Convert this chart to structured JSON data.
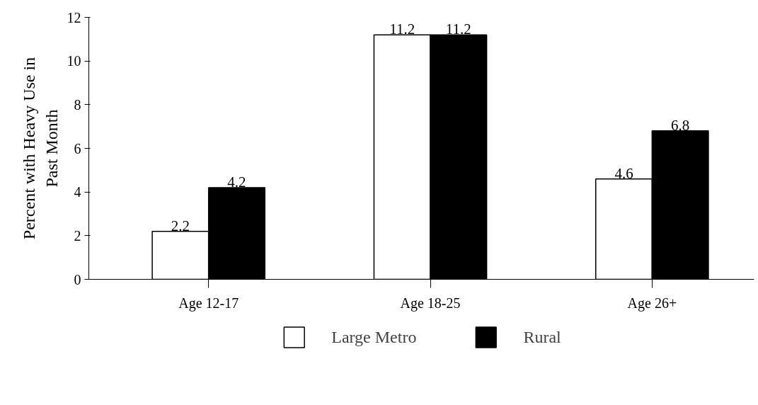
{
  "chart_data": {
    "type": "bar",
    "ylabel": "Percent with Heavy Use in Past Month",
    "categories": [
      "Age 12-17",
      "Age 18-25",
      "Age 26+"
    ],
    "series": [
      {
        "name": "Large Metro",
        "color": "#ffffff",
        "values": [
          2.2,
          11.2,
          4.6
        ]
      },
      {
        "name": "Rural",
        "color": "#000000",
        "values": [
          4.2,
          11.2,
          6.8
        ]
      }
    ],
    "ylim": [
      0,
      12
    ],
    "yticks": [
      0,
      2,
      4,
      6,
      8,
      10,
      12
    ],
    "data_labels": true,
    "grid": false,
    "legend": "bottom"
  }
}
